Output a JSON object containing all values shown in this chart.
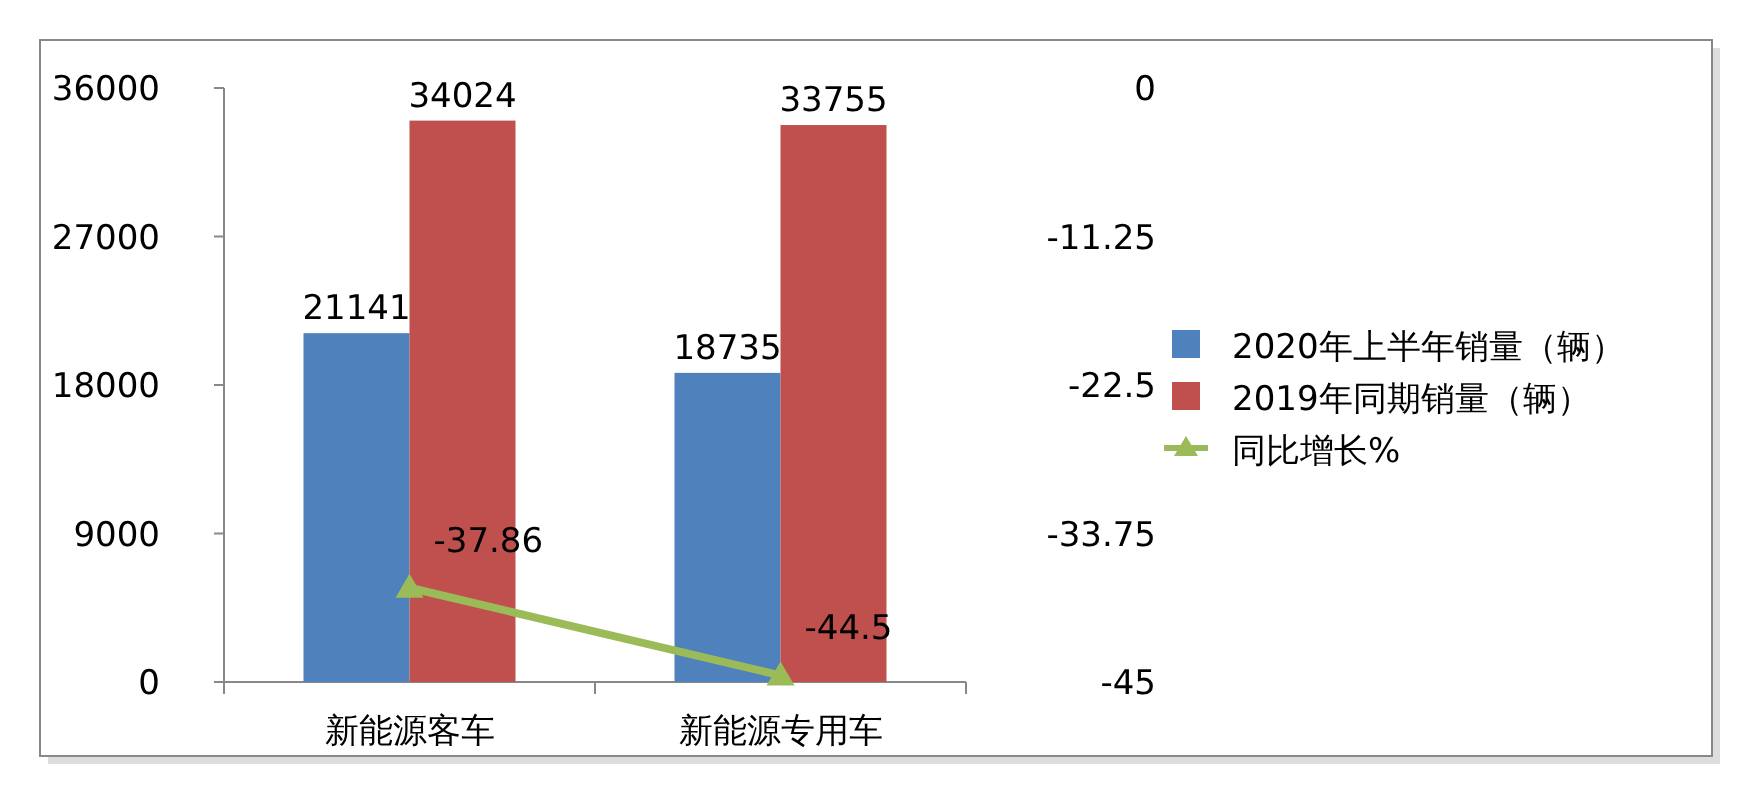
{
  "chart_data": {
    "type": "bar",
    "categories": [
      "新能源客车",
      "新能源专用车"
    ],
    "series": [
      {
        "name": "2020年上半年销量（辆）",
        "color": "#4f81bd",
        "values": [
          21141,
          18735
        ]
      },
      {
        "name": "2019年同期销量（辆）",
        "color": "#c0504d",
        "values": [
          34024,
          33755
        ]
      },
      {
        "name": "同比增长%",
        "color": "#9bbb59",
        "type": "line",
        "axis": "y2",
        "marker": "triangle",
        "values": [
          -37.86,
          -44.5
        ]
      }
    ],
    "ylim": [
      0,
      36000
    ],
    "yticks": [
      0,
      9000,
      18000,
      27000,
      36000
    ],
    "y2lim": [
      -45,
      0
    ],
    "y2ticks": [
      -45,
      -33.75,
      -22.5,
      -11.25,
      0
    ],
    "data_labels": true,
    "legend": "right",
    "grid": false
  }
}
